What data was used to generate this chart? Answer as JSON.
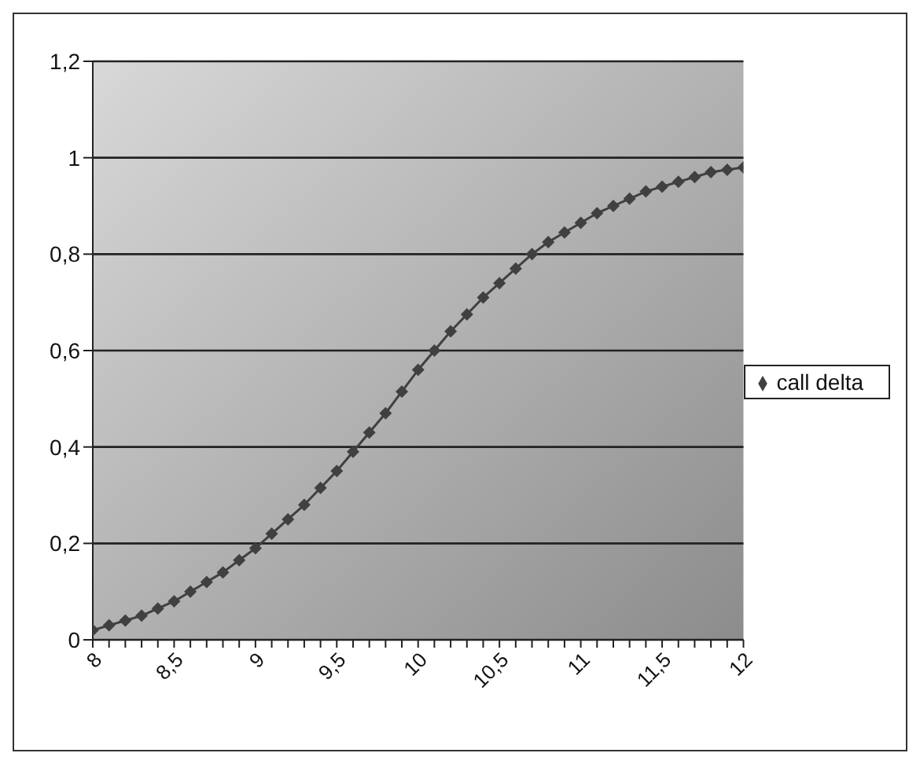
{
  "chart_data": {
    "type": "line",
    "x": [
      8,
      8.1,
      8.2,
      8.3,
      8.4,
      8.5,
      8.6,
      8.7,
      8.8,
      8.9,
      9,
      9.1,
      9.2,
      9.3,
      9.4,
      9.5,
      9.6,
      9.7,
      9.8,
      9.9,
      10,
      10.1,
      10.2,
      10.3,
      10.4,
      10.5,
      10.6,
      10.7,
      10.8,
      10.9,
      11,
      11.1,
      11.2,
      11.3,
      11.4,
      11.5,
      11.6,
      11.7,
      11.8,
      11.9,
      12
    ],
    "series": [
      {
        "name": "call delta",
        "color": "#404040",
        "values": [
          0.02,
          0.03,
          0.04,
          0.05,
          0.065,
          0.08,
          0.1,
          0.12,
          0.14,
          0.165,
          0.19,
          0.22,
          0.25,
          0.28,
          0.315,
          0.35,
          0.39,
          0.43,
          0.47,
          0.515,
          0.56,
          0.6,
          0.64,
          0.675,
          0.71,
          0.74,
          0.77,
          0.8,
          0.825,
          0.845,
          0.865,
          0.885,
          0.9,
          0.915,
          0.93,
          0.94,
          0.95,
          0.96,
          0.97,
          0.975,
          0.98
        ]
      }
    ],
    "xlim": [
      8,
      12
    ],
    "xticks": [
      8,
      {
        "value": 8.1,
        "label": null
      },
      {
        "value": 8.2,
        "label": null
      },
      {
        "value": 8.3,
        "label": null
      },
      {
        "value": 8.4,
        "label": null
      },
      {
        "value": 8.5,
        "label": "8,5"
      },
      {
        "value": 8.6,
        "label": null
      },
      {
        "value": 8.7,
        "label": null
      },
      {
        "value": 8.8,
        "label": null
      },
      {
        "value": 8.9,
        "label": null
      },
      9,
      {
        "value": 9.1,
        "label": null
      },
      {
        "value": 9.2,
        "label": null
      },
      {
        "value": 9.3,
        "label": null
      },
      {
        "value": 9.4,
        "label": null
      },
      {
        "value": 9.5,
        "label": "9,5"
      },
      {
        "value": 9.6,
        "label": null
      },
      {
        "value": 9.7,
        "label": null
      },
      {
        "value": 9.8,
        "label": null
      },
      {
        "value": 9.9,
        "label": null
      },
      10,
      {
        "value": 10.1,
        "label": null
      },
      {
        "value": 10.2,
        "label": null
      },
      {
        "value": 10.3,
        "label": null
      },
      {
        "value": 10.4,
        "label": null
      },
      {
        "value": 10.5,
        "label": "10,5"
      },
      {
        "value": 10.6,
        "label": null
      },
      {
        "value": 10.7,
        "label": null
      },
      {
        "value": 10.8,
        "label": null
      },
      {
        "value": 10.9,
        "label": null
      },
      11,
      {
        "value": 11.1,
        "label": null
      },
      {
        "value": 11.2,
        "label": null
      },
      {
        "value": 11.3,
        "label": null
      },
      {
        "value": 11.4,
        "label": null
      },
      {
        "value": 11.5,
        "label": "11,5"
      },
      {
        "value": 11.6,
        "label": null
      },
      {
        "value": 11.7,
        "label": null
      },
      {
        "value": 11.8,
        "label": null
      },
      {
        "value": 11.9,
        "label": null
      },
      12
    ],
    "ylim": [
      0,
      1.2
    ],
    "yticks": [
      0,
      {
        "value": 0.2,
        "label": "0,2"
      },
      {
        "value": 0.4,
        "label": "0,4"
      },
      {
        "value": 0.6,
        "label": "0,6"
      },
      {
        "value": 0.8,
        "label": "0,8"
      },
      1,
      {
        "value": 1.2,
        "label": "1,2"
      }
    ],
    "grid": "y",
    "legend": "right",
    "marker": "diamond",
    "line_style": "solid"
  }
}
